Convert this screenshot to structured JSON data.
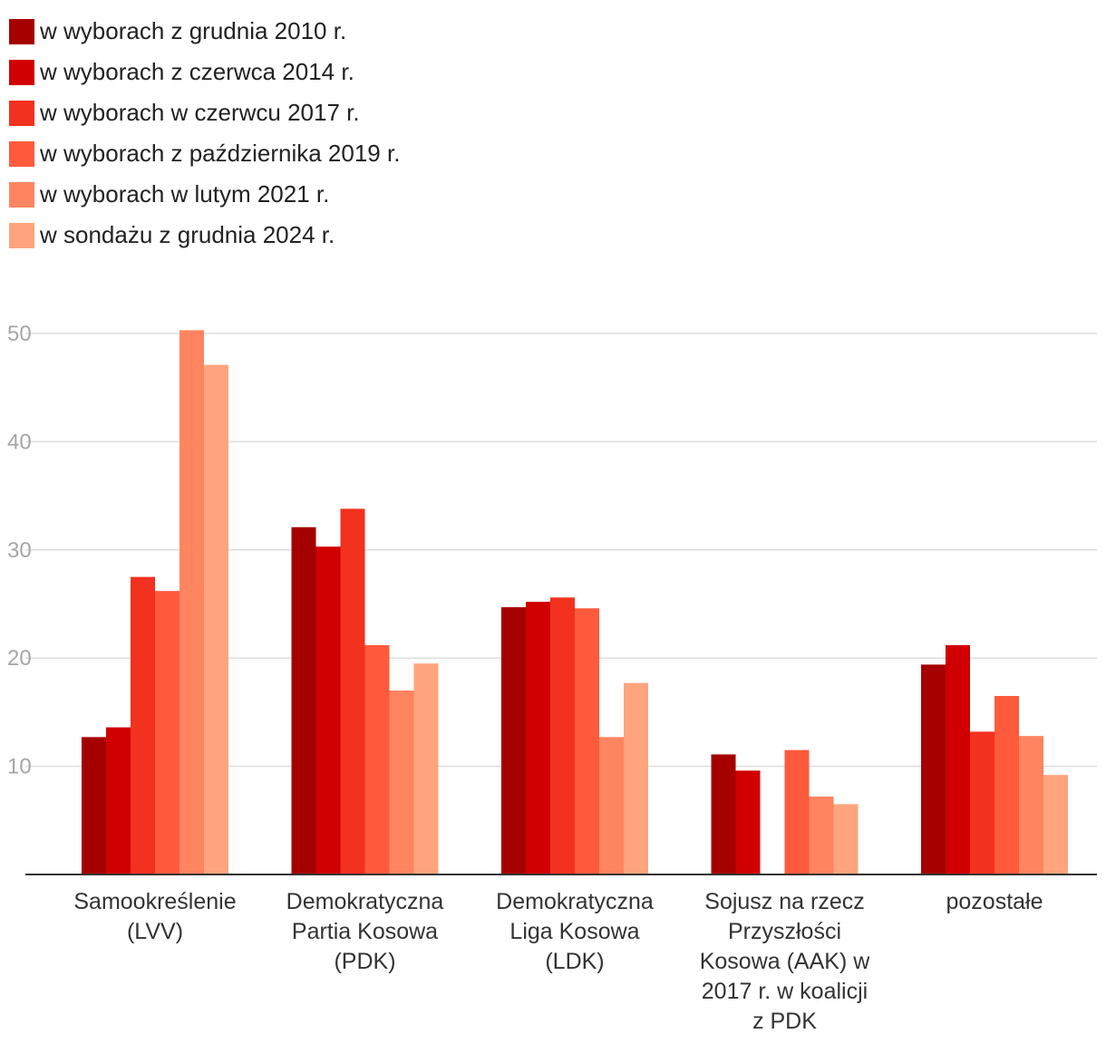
{
  "chart_data": {
    "type": "bar",
    "categories": [
      [
        "Samookreślenie",
        "(LVV)"
      ],
      [
        "Demokratyczna",
        "Partia Kosowa",
        "(PDK)"
      ],
      [
        "Demokratyczna",
        "Liga Kosowa",
        "(LDK)"
      ],
      [
        "Sojusz na rzecz",
        "Przyszłości",
        "Kosowa (AAK) w",
        "2017 r. w koalicji",
        "z PDK"
      ],
      [
        "pozostałe"
      ]
    ],
    "series": [
      {
        "name": "w wyborach z grudnia 2010 r.",
        "color": "#a50000",
        "values": [
          12.7,
          32.1,
          24.7,
          11.1,
          19.4
        ]
      },
      {
        "name": "w wyborach z czerwca 2014 r.",
        "color": "#d00000",
        "values": [
          13.6,
          30.3,
          25.2,
          9.6,
          21.2
        ]
      },
      {
        "name": "w wyborach w czerwcu 2017 r.",
        "color": "#f2311f",
        "values": [
          27.5,
          33.8,
          25.6,
          null,
          13.2
        ]
      },
      {
        "name": "w wyborach z października 2019 r.",
        "color": "#ff5a3c",
        "values": [
          26.2,
          21.2,
          24.6,
          11.5,
          16.5
        ]
      },
      {
        "name": "w wyborach w lutym 2021 r.",
        "color": "#ff8460",
        "values": [
          50.3,
          17.0,
          12.7,
          7.2,
          12.8
        ]
      },
      {
        "name": "w sondażu z grudnia 2024 r.",
        "color": "#ffa47d",
        "values": [
          47.1,
          19.5,
          17.7,
          6.5,
          9.2
        ]
      }
    ],
    "yticks": [
      "10",
      "20",
      "30",
      "40",
      "50"
    ],
    "ylim": [
      0,
      50
    ],
    "grid": true,
    "legend": "top-left"
  }
}
